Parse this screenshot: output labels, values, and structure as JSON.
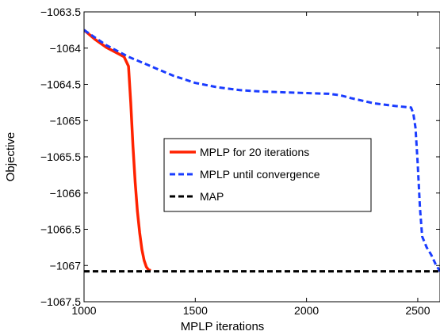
{
  "chart_data": {
    "type": "line",
    "title": "",
    "xlabel": "MPLP iterations",
    "ylabel": "Objective",
    "xlim": [
      1000,
      2600
    ],
    "ylim": [
      -1067.5,
      -1063.5
    ],
    "xticks": [
      1000,
      1500,
      2000,
      2500
    ],
    "xtick_labels": [
      "1000",
      "1500",
      "2000",
      "2500"
    ],
    "yticks": [
      -1063.5,
      -1064,
      -1064.5,
      -1065,
      -1065.5,
      -1066,
      -1066.5,
      -1067,
      -1067.5
    ],
    "ytick_labels": [
      "−1063.5",
      "−1064",
      "−1064.5",
      "−1065",
      "−1065.5",
      "−1066",
      "−1066.5",
      "−1067",
      "−1067.5"
    ],
    "grid": false,
    "legend_position": "center-right",
    "series": [
      {
        "name": "MPLP for 20 iterations",
        "color": "#ff2200",
        "style": "solid",
        "x": [
          1000,
          1050,
          1100,
          1150,
          1180,
          1200,
          1210,
          1220,
          1230,
          1240,
          1250,
          1260,
          1270,
          1280,
          1290,
          1300
        ],
        "y": [
          -1063.75,
          -1063.88,
          -1063.99,
          -1064.07,
          -1064.12,
          -1064.25,
          -1064.75,
          -1065.35,
          -1065.85,
          -1066.25,
          -1066.55,
          -1066.78,
          -1066.93,
          -1067.02,
          -1067.06,
          -1067.07
        ]
      },
      {
        "name": "MPLP until convergence",
        "color": "#1a3cff",
        "style": "dashed",
        "x": [
          1000,
          1100,
          1200,
          1300,
          1400,
          1500,
          1600,
          1700,
          1800,
          1900,
          2000,
          2100,
          2150,
          2200,
          2300,
          2400,
          2470,
          2480,
          2490,
          2500,
          2510,
          2520,
          2540,
          2560,
          2580,
          2600
        ],
        "y": [
          -1063.75,
          -1063.96,
          -1064.12,
          -1064.25,
          -1064.38,
          -1064.48,
          -1064.54,
          -1064.58,
          -1064.6,
          -1064.61,
          -1064.62,
          -1064.63,
          -1064.65,
          -1064.69,
          -1064.76,
          -1064.8,
          -1064.82,
          -1064.9,
          -1065.1,
          -1065.6,
          -1066.2,
          -1066.6,
          -1066.75,
          -1066.85,
          -1066.98,
          -1067.08
        ]
      },
      {
        "name": "MAP",
        "color": "#000000",
        "style": "dashed",
        "x": [
          1000,
          2600
        ],
        "y": [
          -1067.08,
          -1067.08
        ]
      }
    ]
  }
}
